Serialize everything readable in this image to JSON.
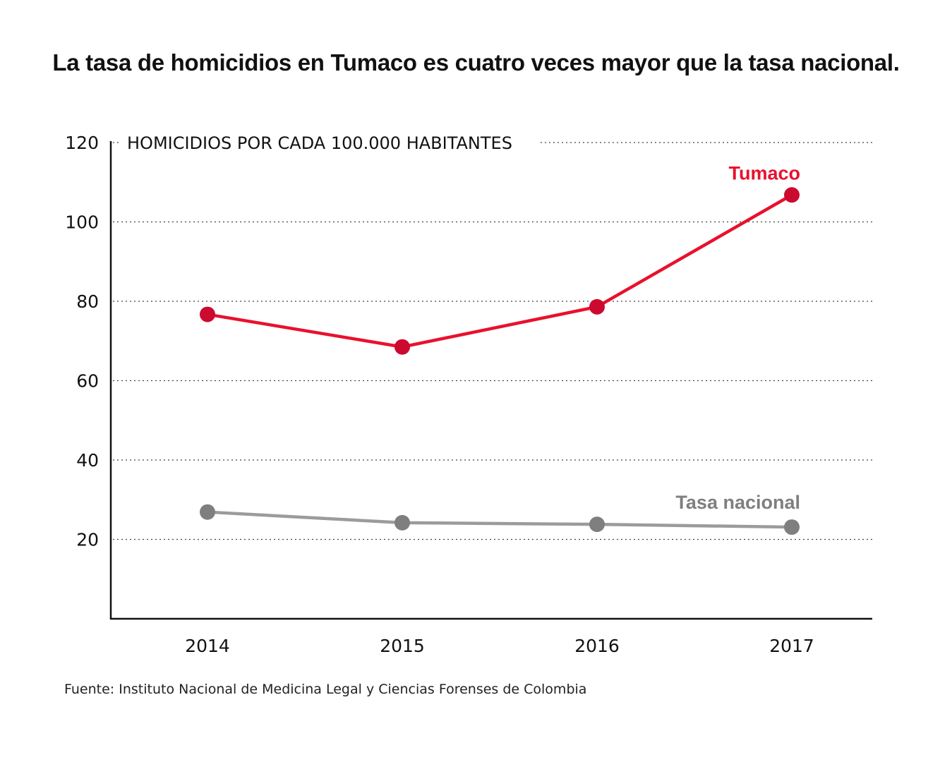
{
  "chart_data": {
    "type": "line",
    "title": "La tasa de homicidios en Tumaco es cuatro veces mayor que la tasa nacional.",
    "ylabel": "HOMICIDIOS POR CADA 100.000 HABITANTES",
    "xlabel": "",
    "categories": [
      "2014",
      "2015",
      "2016",
      "2017"
    ],
    "ylim": [
      0,
      120
    ],
    "yticks": [
      20,
      40,
      60,
      80,
      100,
      120
    ],
    "grid": true,
    "series": [
      {
        "name": "Tumaco",
        "color": "#e8112d",
        "marker_color": "#cc0a2f",
        "values": [
          76.7,
          68.5,
          78.6,
          106.8
        ]
      },
      {
        "name": "Tasa nacional",
        "color": "#9b9b9b",
        "marker_color": "#7f7f7f",
        "values": [
          26.9,
          24.2,
          23.8,
          23.1
        ]
      }
    ],
    "source": "Fuente: Instituto Nacional de Medicina Legal y Ciencias Forenses de Colombia"
  }
}
